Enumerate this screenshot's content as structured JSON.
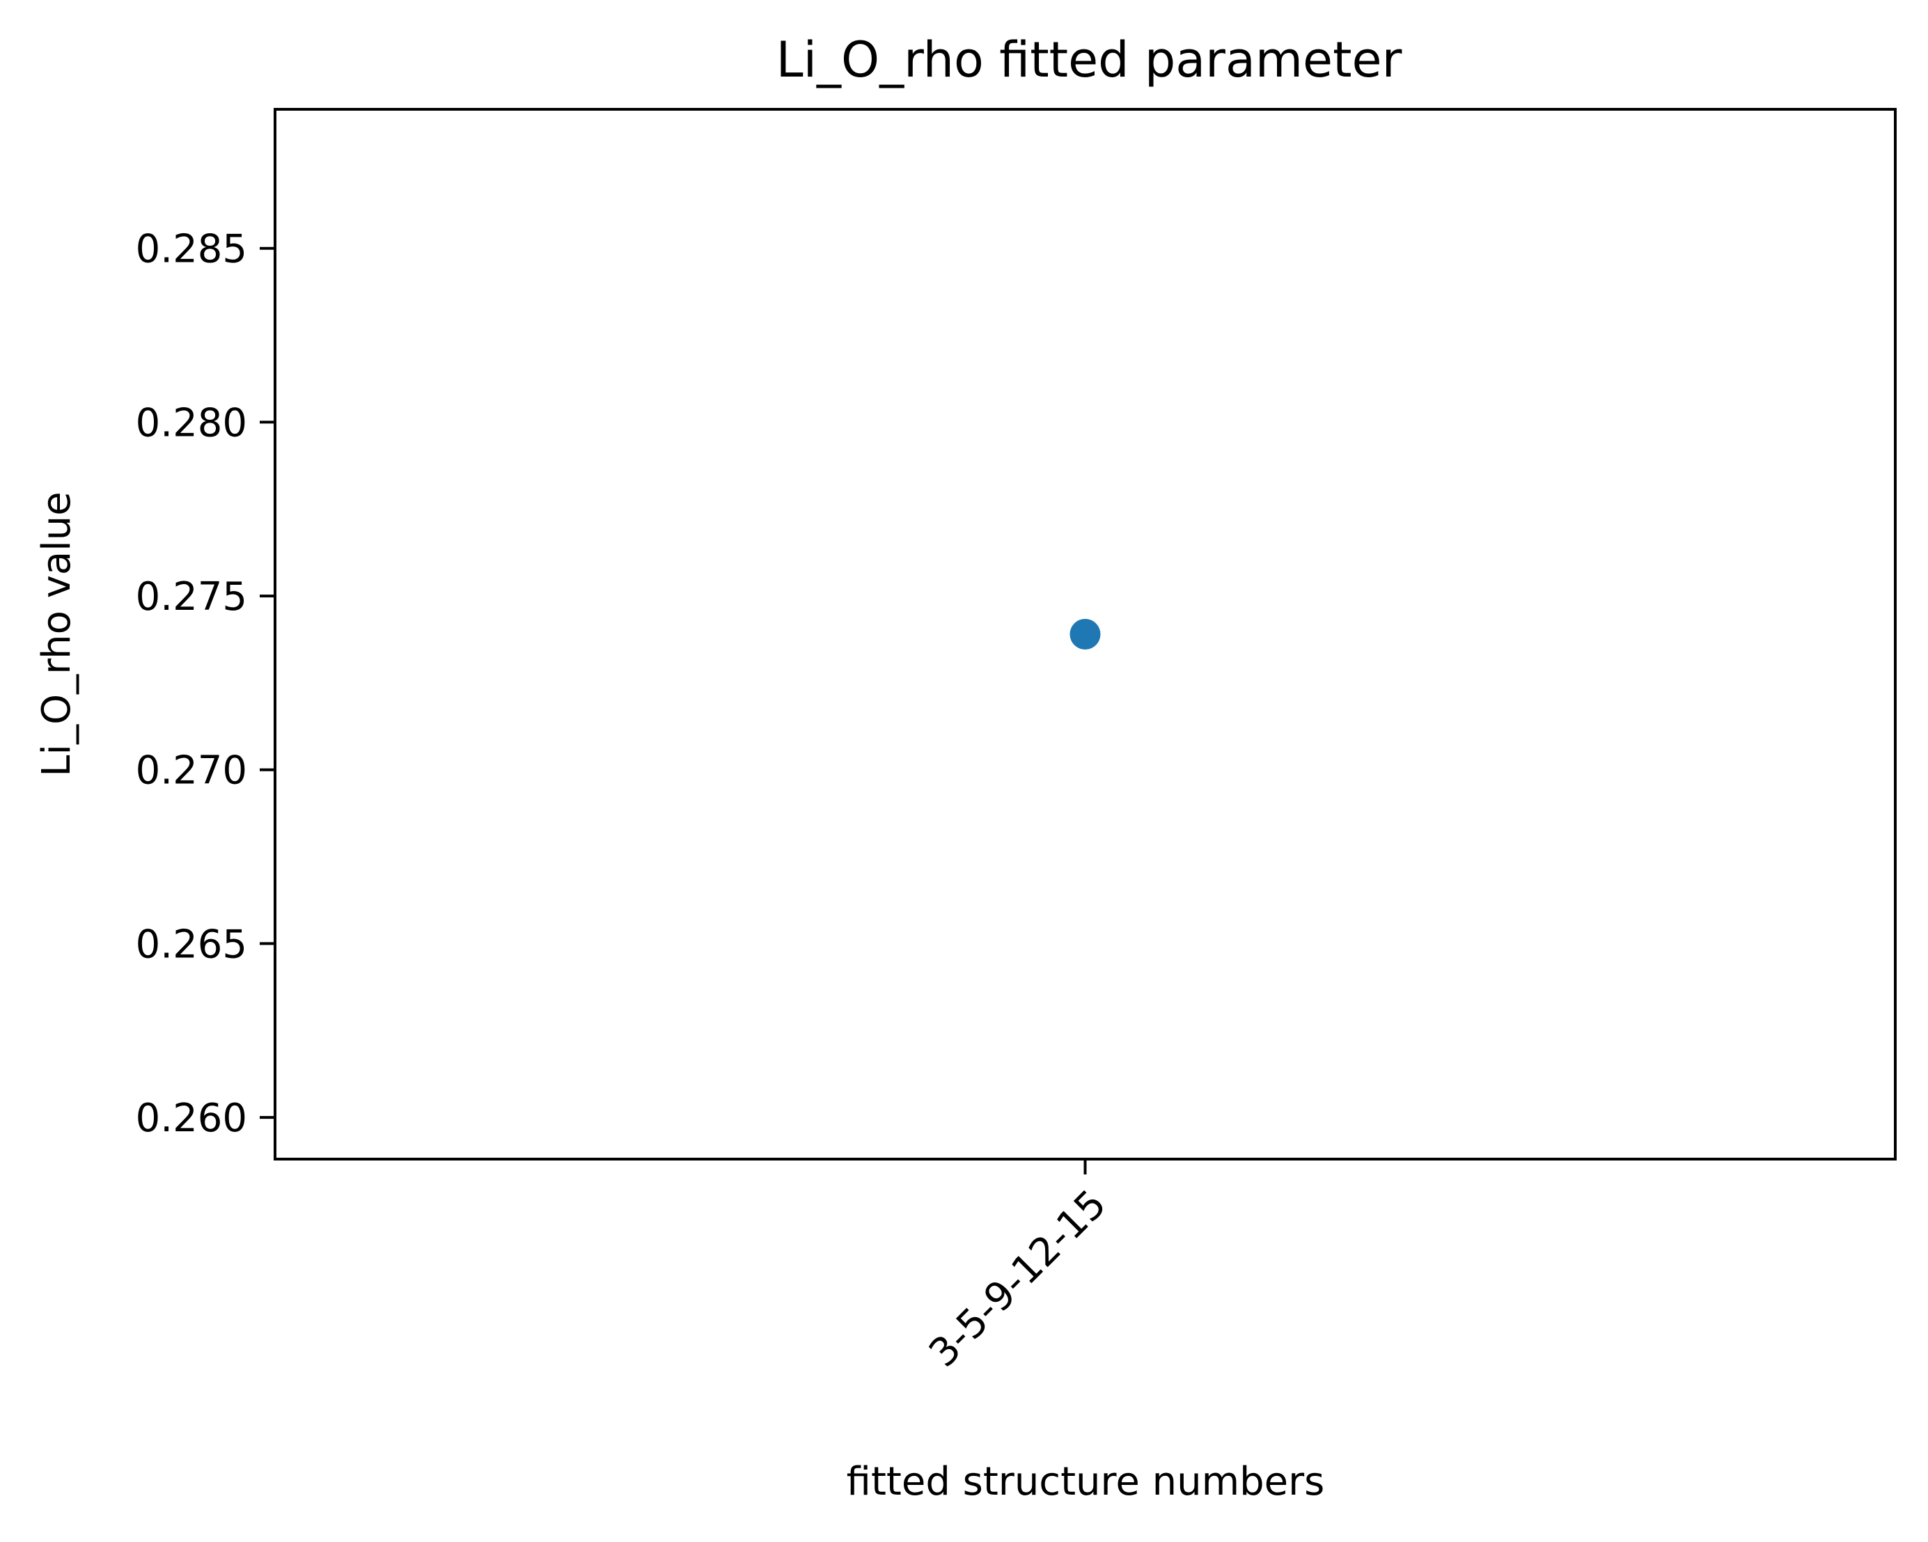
{
  "chart_data": {
    "type": "scatter",
    "title": "Li_O_rho fitted parameter",
    "xlabel": "fitted structure numbers",
    "ylabel": "Li_O_rho value",
    "categories": [
      "3-5-9-12-15"
    ],
    "series": [
      {
        "values": [
          0.2739
        ],
        "color": "#1f77b4"
      }
    ],
    "ylim": [
      0.2588,
      0.289
    ],
    "yticks": [
      0.26,
      0.265,
      0.27,
      0.275,
      0.28,
      0.285
    ],
    "ytick_labels": [
      "0.260",
      "0.265",
      "0.270",
      "0.275",
      "0.280",
      "0.285"
    ],
    "grid": false
  }
}
